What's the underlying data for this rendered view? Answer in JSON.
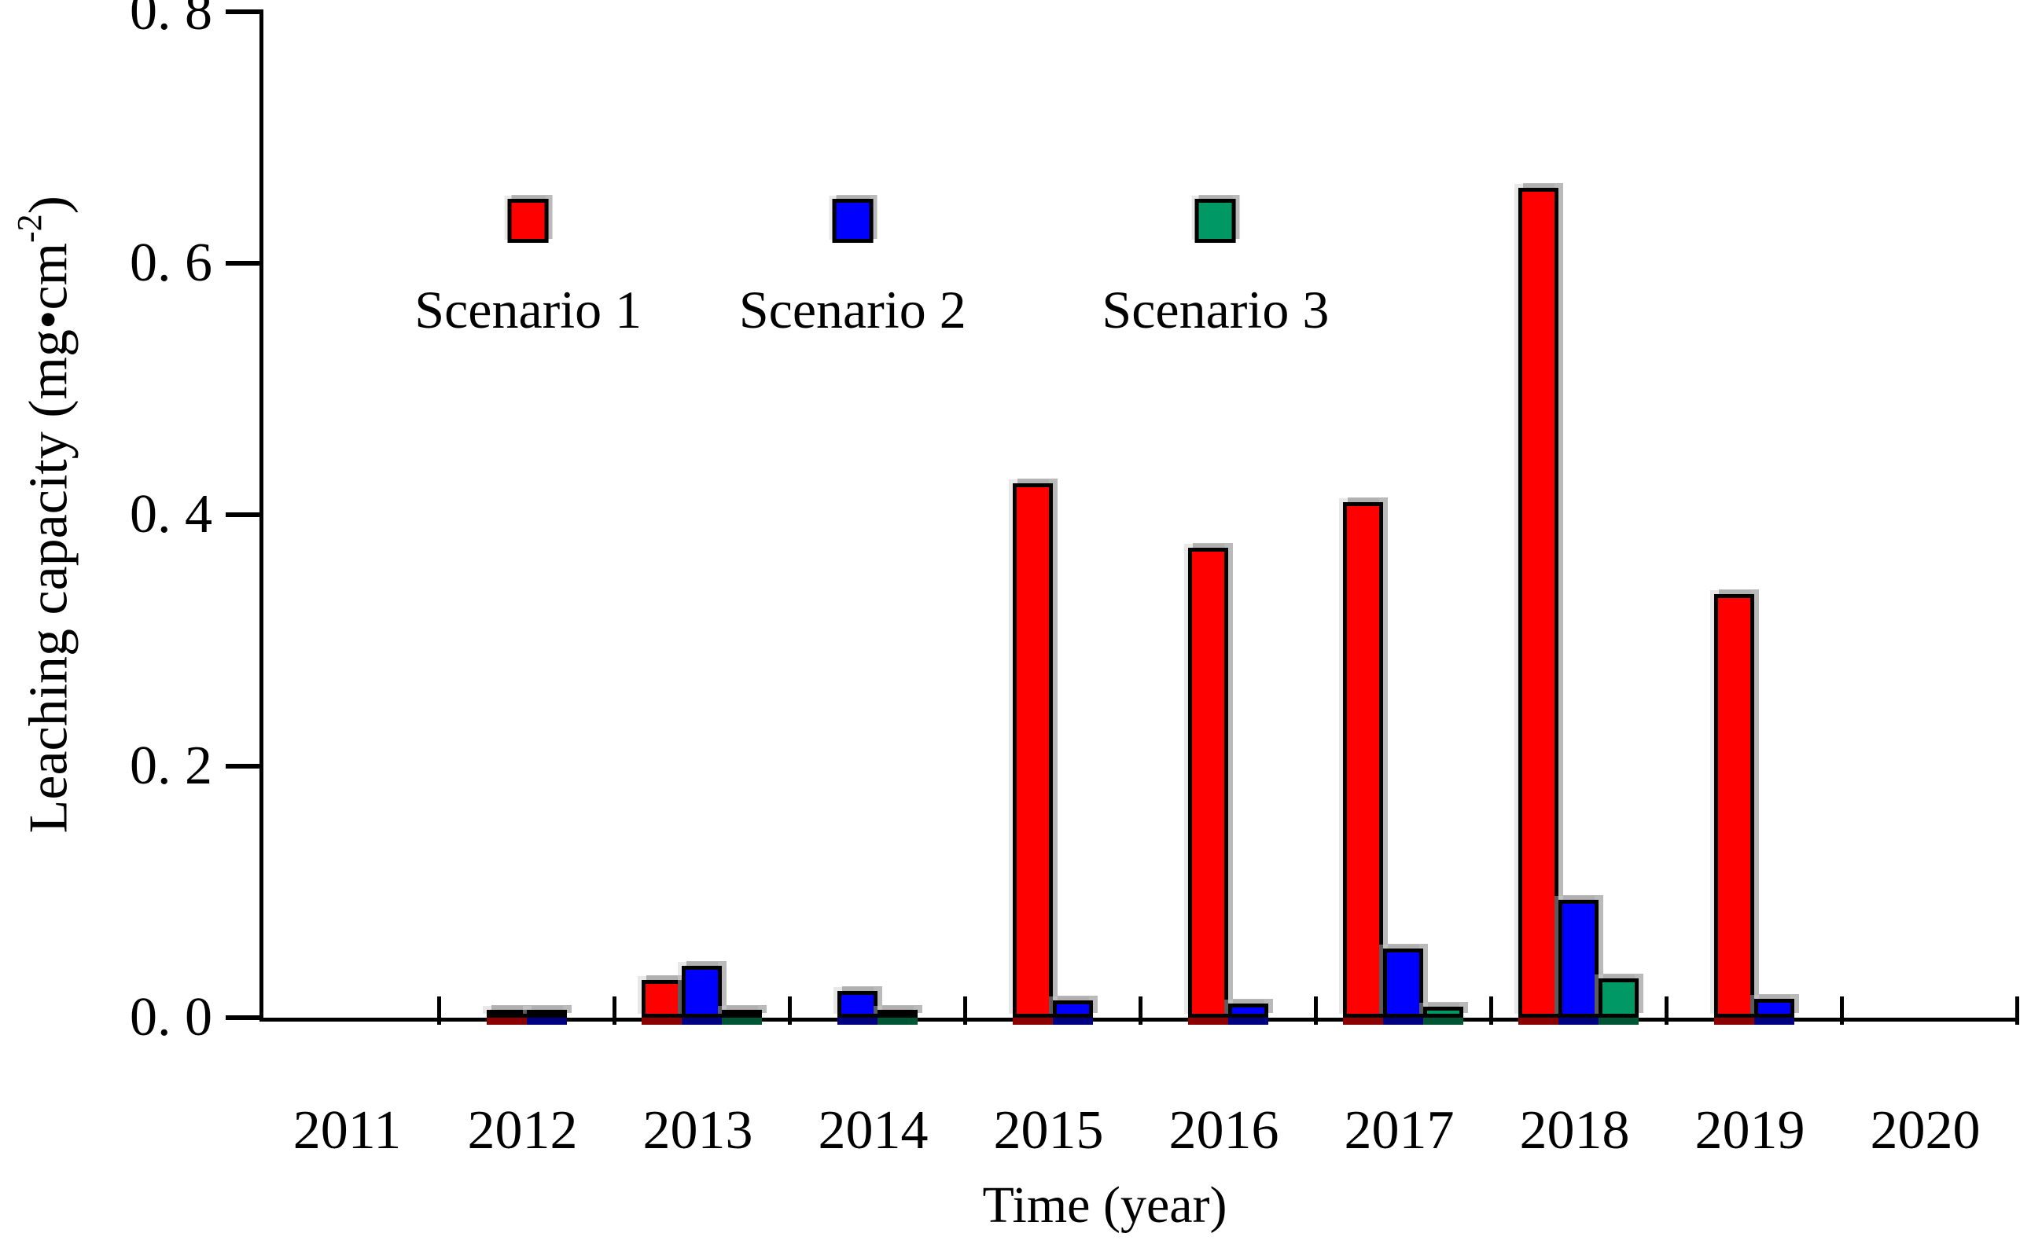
{
  "figure": {
    "ylabel_prefix": "Leaching capacity (mg",
    "ylabel_dot": "•",
    "ylabel_unit": "cm",
    "ylabel_sup": "-2",
    "ylabel_suffix": ")",
    "xlabel": "Time (year)"
  },
  "chart_data": {
    "type": "bar",
    "title": "",
    "xlabel": "Time (year)",
    "ylabel": "Leaching capacity (mg·cm⁻²)",
    "ylim": [
      0,
      0.8
    ],
    "ytick_step": 0.2,
    "ytick_labels": [
      "0. 8",
      "0. 6",
      "0. 4",
      "0. 2",
      "0. 0"
    ],
    "grid": false,
    "legend_position": "inside-top-left",
    "legend_entries": [
      "Scenario 1",
      "Scenario 2",
      "Scenario 3"
    ],
    "categories": [
      "2011",
      "2012",
      "2013",
      "2014",
      "2015",
      "2016",
      "2017",
      "2018",
      "2019",
      "2020"
    ],
    "series": [
      {
        "name": "Scenario 1",
        "color": "#ff0000",
        "under_color": "#8b0000",
        "values": [
          0,
          0.002,
          0.03,
          0,
          0.425,
          0.374,
          0.41,
          0.66,
          0.337,
          0
        ]
      },
      {
        "name": "Scenario 2",
        "color": "#0000ff",
        "under_color": "#000080",
        "values": [
          0,
          0.002,
          0.041,
          0.021,
          0.014,
          0.011,
          0.055,
          0.094,
          0.015,
          0
        ]
      },
      {
        "name": "Scenario 3",
        "color": "#009966",
        "under_color": "#005534",
        "values": [
          0,
          0,
          0.003,
          0.003,
          0,
          0,
          0.009,
          0.031,
          0,
          0
        ]
      }
    ]
  }
}
